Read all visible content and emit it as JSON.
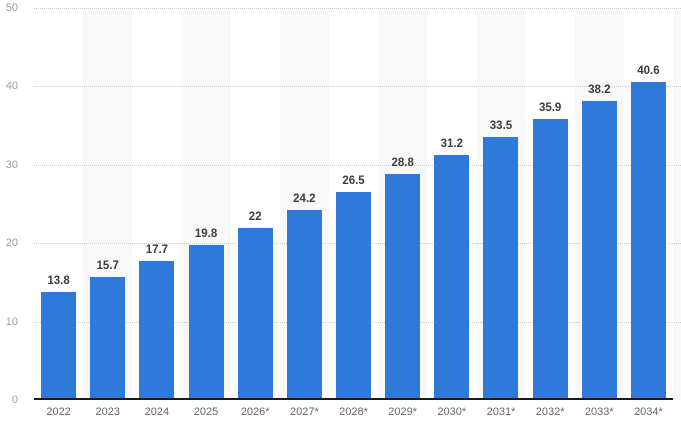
{
  "chart_data": {
    "type": "bar",
    "categories": [
      "2022",
      "2023",
      "2024",
      "2025",
      "2026*",
      "2027*",
      "2028*",
      "2029*",
      "2030*",
      "2031*",
      "2032*",
      "2033*",
      "2034*"
    ],
    "values": [
      13.8,
      15.7,
      17.7,
      19.8,
      22,
      24.2,
      26.5,
      28.8,
      31.2,
      33.5,
      35.9,
      38.2,
      40.6
    ],
    "value_labels": [
      "13.8",
      "15.7",
      "17.7",
      "19.8",
      "22",
      "24.2",
      "26.5",
      "28.8",
      "31.2",
      "33.5",
      "35.9",
      "38.2",
      "40.6"
    ],
    "title": "",
    "xlabel": "",
    "ylabel": "",
    "ylim": [
      0,
      50
    ],
    "yticks": [
      0,
      10,
      20,
      30,
      40,
      50
    ],
    "grid": "horizontal-dotted",
    "legend": "none",
    "plot_bands": "alternating light columns"
  },
  "style": {
    "bar_color": "#2e79d9",
    "stripe_color": "#f8f8f8",
    "grid_color": "#cccccc",
    "axis_line_color": "#1a1a1a",
    "value_label_color": "#3c3c3c",
    "x_tick_color": "#666666",
    "y_tick_color": "#9b9b9b",
    "background_color": "#ffffff"
  }
}
